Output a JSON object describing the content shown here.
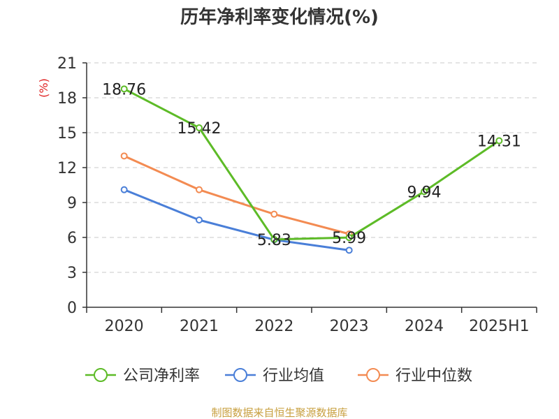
{
  "chart_data": {
    "type": "line",
    "title": "历年净利率变化情况(%)",
    "ylabel": "(%)",
    "xlabel": "",
    "categories": [
      "2020",
      "2021",
      "2022",
      "2023",
      "2024",
      "2025H1"
    ],
    "ylim": [
      0,
      21
    ],
    "yticks": [
      0,
      3,
      6,
      9,
      12,
      15,
      18,
      21
    ],
    "grid": true,
    "legend_position": "bottom",
    "series": [
      {
        "name": "公司净利率",
        "color": "#5dbb27",
        "values": [
          18.76,
          15.42,
          5.83,
          5.99,
          9.94,
          14.31
        ],
        "labels": [
          "18.76",
          "15.42",
          "5.83",
          "5.99",
          "9.94",
          "14.31"
        ]
      },
      {
        "name": "行业均值",
        "color": "#4a7fd8",
        "values": [
          10.1,
          7.5,
          5.8,
          4.9,
          null,
          null
        ]
      },
      {
        "name": "行业中位数",
        "color": "#f38b52",
        "values": [
          13.0,
          10.1,
          8.0,
          6.3,
          null,
          null
        ]
      }
    ]
  },
  "source": "制图数据来自恒生聚源数据库"
}
